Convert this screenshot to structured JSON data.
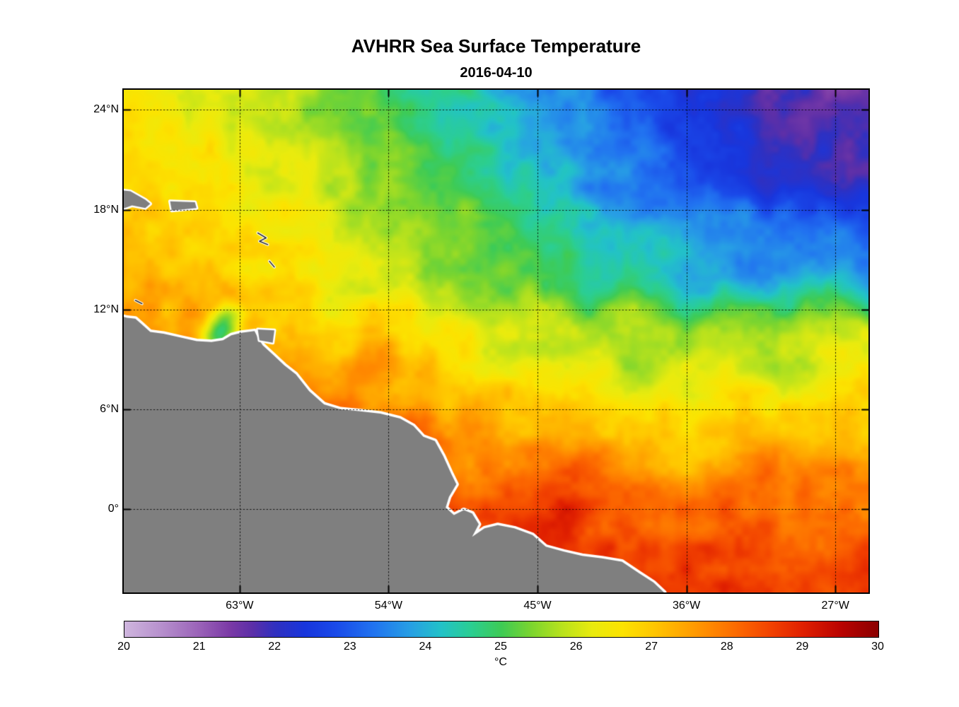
{
  "title": "AVHRR Sea Surface Temperature",
  "subtitle": "2016-04-10",
  "colorbar": {
    "unit_label": "°C",
    "min": 20,
    "max": 30,
    "tick_labels": [
      "20",
      "21",
      "22",
      "23",
      "24",
      "25",
      "26",
      "27",
      "28",
      "29",
      "30"
    ],
    "tick_values": [
      20,
      21,
      22,
      23,
      24,
      25,
      26,
      27,
      28,
      29,
      30
    ]
  },
  "chart_data": {
    "type": "heatmap",
    "title": "AVHRR Sea Surface Temperature",
    "subtitle": "2016-04-10",
    "units": "°C",
    "xlabel": "",
    "ylabel": "",
    "grid_on": true,
    "lon_range": [
      -70,
      -25
    ],
    "lat_range": [
      -5,
      25.2
    ],
    "x_ticks": [
      {
        "label": "63°W",
        "value": -63
      },
      {
        "label": "54°W",
        "value": -54
      },
      {
        "label": "45°W",
        "value": -45
      },
      {
        "label": "36°W",
        "value": -36
      },
      {
        "label": "27°W",
        "value": -27
      }
    ],
    "y_ticks": [
      {
        "label": "24°N",
        "value": 24
      },
      {
        "label": "18°N",
        "value": 18
      },
      {
        "label": "12°N",
        "value": 12
      },
      {
        "label": "6°N",
        "value": 6
      },
      {
        "label": "0°",
        "value": 0
      }
    ],
    "colorbar_range": [
      20,
      30
    ],
    "colormap_stops": [
      [
        0.0,
        "#cfb6de"
      ],
      [
        0.05,
        "#b68fcd"
      ],
      [
        0.1,
        "#9a62b8"
      ],
      [
        0.14,
        "#7b3aa6"
      ],
      [
        0.17,
        "#5c2fa8"
      ],
      [
        0.2,
        "#3030c0"
      ],
      [
        0.24,
        "#1836dd"
      ],
      [
        0.28,
        "#1a4ae9"
      ],
      [
        0.33,
        "#2173f0"
      ],
      [
        0.38,
        "#27a0e4"
      ],
      [
        0.42,
        "#22c2c8"
      ],
      [
        0.46,
        "#2bce92"
      ],
      [
        0.5,
        "#3ecb55"
      ],
      [
        0.54,
        "#7cd52f"
      ],
      [
        0.58,
        "#b8e21d"
      ],
      [
        0.62,
        "#e9eb0e"
      ],
      [
        0.66,
        "#fce300"
      ],
      [
        0.7,
        "#ffc800"
      ],
      [
        0.74,
        "#ffa800"
      ],
      [
        0.78,
        "#ff8600"
      ],
      [
        0.82,
        "#fb6300"
      ],
      [
        0.86,
        "#f14000"
      ],
      [
        0.9,
        "#e02000"
      ],
      [
        0.95,
        "#ba0300"
      ],
      [
        1.0,
        "#8b0000"
      ]
    ],
    "sst_grid": {
      "lons": [
        -70,
        -65,
        -60,
        -55,
        -50,
        -45,
        -40,
        -35,
        -30,
        -25
      ],
      "lats": [
        25,
        20,
        15,
        10,
        5,
        0,
        -5
      ],
      "values_c": [
        [
          26.4,
          26.1,
          25.7,
          25.1,
          24.5,
          23.7,
          22.9,
          22.2,
          21.8,
          21.5
        ],
        [
          26.9,
          26.6,
          26.1,
          25.5,
          24.9,
          24.2,
          23.4,
          22.7,
          22.2,
          21.9
        ],
        [
          27.3,
          27.0,
          26.6,
          26.1,
          25.5,
          25.0,
          24.4,
          24.0,
          23.5,
          23.4
        ],
        [
          27.6,
          27.4,
          27.1,
          26.8,
          26.4,
          26.1,
          25.8,
          25.7,
          25.8,
          26.0
        ],
        [
          28.2,
          28.0,
          27.9,
          27.7,
          27.5,
          27.2,
          27.0,
          26.9,
          26.9,
          27.1
        ],
        [
          28.8,
          28.8,
          28.7,
          28.6,
          28.5,
          28.5,
          28.3,
          28.1,
          28.0,
          28.0
        ],
        [
          29.3,
          29.2,
          29.2,
          29.1,
          29.0,
          29.1,
          28.9,
          28.7,
          28.7,
          28.6
        ]
      ]
    },
    "anomalies": [
      {
        "name": "cariaco-upwelling",
        "lon": -64.8,
        "lat": 10.6,
        "radius_deg": 1.1,
        "delta_c": -2.6
      },
      {
        "name": "guyana-warm-patch",
        "lon": -55.5,
        "lat": 8.3,
        "radius_deg": 2.0,
        "delta_c": 0.7
      },
      {
        "name": "french-guiana-warm",
        "lon": -52.0,
        "lat": 5.8,
        "radius_deg": 1.5,
        "delta_c": 0.8
      },
      {
        "name": "amazon-plume-warm",
        "lon": -44.5,
        "lat": 0.3,
        "radius_deg": 3.0,
        "delta_c": 0.5
      },
      {
        "name": "central-atlantic-warm",
        "lon": -32.0,
        "lat": 2.5,
        "radius_deg": 3.0,
        "delta_c": 0.4
      }
    ],
    "land": {
      "fill_color": "#7f7f7f",
      "coast_color": "#ffffff",
      "polygons": [
        {
          "name": "south-america",
          "points": [
            [
              -70.6,
              11.7
            ],
            [
              -69.8,
              11.5
            ],
            [
              -69.3,
              11.45
            ],
            [
              -68.9,
              11.1
            ],
            [
              -68.4,
              10.65
            ],
            [
              -67.6,
              10.55
            ],
            [
              -66.5,
              10.3
            ],
            [
              -65.6,
              10.1
            ],
            [
              -64.7,
              10.05
            ],
            [
              -64.0,
              10.15
            ],
            [
              -63.5,
              10.45
            ],
            [
              -62.9,
              10.6
            ],
            [
              -62.1,
              10.7
            ],
            [
              -61.9,
              10.3
            ],
            [
              -61.6,
              9.85
            ],
            [
              -61.0,
              9.3
            ],
            [
              -60.3,
              8.65
            ],
            [
              -59.6,
              8.1
            ],
            [
              -58.8,
              7.1
            ],
            [
              -57.9,
              6.3
            ],
            [
              -56.9,
              6.0
            ],
            [
              -55.8,
              5.9
            ],
            [
              -54.5,
              5.75
            ],
            [
              -53.3,
              5.45
            ],
            [
              -52.5,
              5.0
            ],
            [
              -51.9,
              4.35
            ],
            [
              -51.2,
              4.1
            ],
            [
              -50.7,
              3.2
            ],
            [
              -50.2,
              2.1
            ],
            [
              -49.9,
              1.5
            ],
            [
              -50.35,
              0.75
            ],
            [
              -50.55,
              0.1
            ],
            [
              -50.05,
              -0.35
            ],
            [
              -49.45,
              -0.05
            ],
            [
              -48.95,
              -0.25
            ],
            [
              -48.55,
              -0.9
            ],
            [
              -48.95,
              -1.65
            ],
            [
              -48.2,
              -1.15
            ],
            [
              -47.4,
              -0.95
            ],
            [
              -46.4,
              -1.15
            ],
            [
              -45.3,
              -1.55
            ],
            [
              -44.5,
              -2.25
            ],
            [
              -43.4,
              -2.55
            ],
            [
              -42.3,
              -2.8
            ],
            [
              -41.1,
              -2.95
            ],
            [
              -39.9,
              -3.15
            ],
            [
              -38.85,
              -3.85
            ],
            [
              -38.0,
              -4.4
            ],
            [
              -37.35,
              -5.0
            ],
            [
              -37.1,
              -5.8
            ],
            [
              -71.0,
              -6.0
            ]
          ]
        },
        {
          "name": "hispaniola-east",
          "points": [
            [
              -70.5,
              19.2
            ],
            [
              -69.6,
              19.1
            ],
            [
              -68.7,
              18.6
            ],
            [
              -68.4,
              18.35
            ],
            [
              -68.7,
              18.1
            ],
            [
              -69.5,
              18.25
            ],
            [
              -70.5,
              17.9
            ]
          ]
        },
        {
          "name": "puerto-rico",
          "points": [
            [
              -67.2,
              18.5
            ],
            [
              -65.7,
              18.45
            ],
            [
              -65.6,
              18.1
            ],
            [
              -67.1,
              17.95
            ]
          ]
        },
        {
          "name": "trinidad",
          "points": [
            [
              -61.9,
              10.8
            ],
            [
              -60.9,
              10.75
            ],
            [
              -61.0,
              10.0
            ],
            [
              -61.8,
              10.15
            ]
          ]
        }
      ],
      "island_marks": [
        {
          "name": "guadeloupe",
          "points": [
            [
              -61.9,
              16.6
            ],
            [
              -61.4,
              16.3
            ],
            [
              -61.8,
              16.1
            ],
            [
              -61.3,
              15.9
            ]
          ]
        },
        {
          "name": "martinique",
          "points": [
            [
              -61.2,
              14.9
            ],
            [
              -60.9,
              14.55
            ]
          ]
        },
        {
          "name": "curacao",
          "points": [
            [
              -69.3,
              12.55
            ],
            [
              -68.9,
              12.35
            ]
          ]
        }
      ]
    }
  }
}
